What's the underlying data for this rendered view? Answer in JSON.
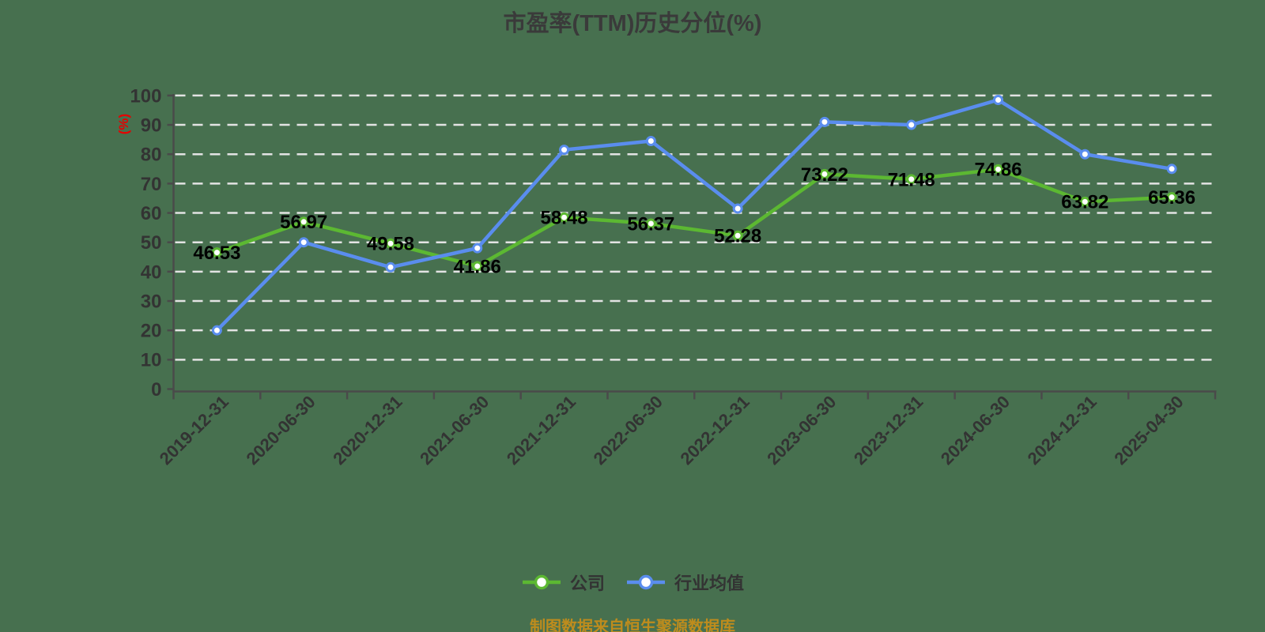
{
  "chart_data": {
    "type": "line",
    "title": "市盈率(TTM)历史分位(%)",
    "ylabel": "(%)",
    "xlabel": "",
    "ylim": [
      0,
      100
    ],
    "y_interval": 10,
    "grid": "horizontal-dashed",
    "legend_position": "bottom-center",
    "categories": [
      "2019-12-31",
      "2020-06-30",
      "2020-12-31",
      "2021-06-30",
      "2021-12-31",
      "2022-06-30",
      "2022-12-31",
      "2023-06-30",
      "2023-12-31",
      "2024-06-30",
      "2024-12-31",
      "2025-04-30"
    ],
    "series": [
      {
        "id": "company",
        "name": "公司",
        "color": "#5CB832",
        "show_point_labels": true,
        "values": [
          46.53,
          56.97,
          49.58,
          41.86,
          58.48,
          56.37,
          52.28,
          73.22,
          71.48,
          74.86,
          63.82,
          65.36
        ]
      },
      {
        "id": "industry-average",
        "name": "行业均值",
        "color": "#5A8DEE",
        "show_point_labels": false,
        "values": [
          20,
          50,
          41.5,
          48,
          81.5,
          84.5,
          61.5,
          91,
          90,
          98.5,
          80,
          75
        ]
      }
    ],
    "footer": "制图数据来自恒生聚源数据库",
    "colors": {
      "background": "#47704F",
      "gridline": "#E3E3E3",
      "axis": "#4A4A4A",
      "tick_label": "#333333",
      "data_label": "#000000",
      "title": "#3A3A3A",
      "y_axis_name": "#E60000",
      "footer": "#BE8C1D",
      "marker_fill": "#FFFFFF"
    }
  }
}
